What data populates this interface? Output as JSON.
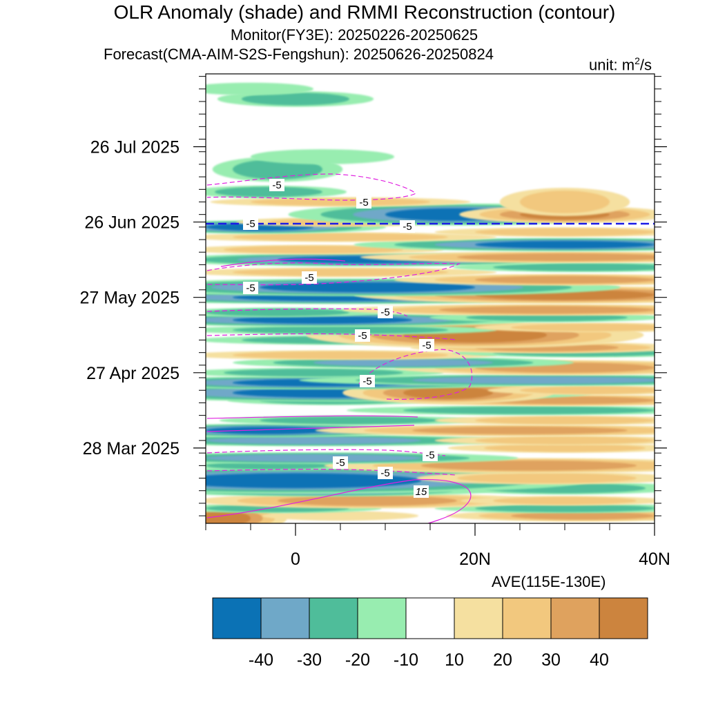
{
  "figure": {
    "title": "OLR Anomaly (shade) and RMMI Reconstruction (contour)",
    "subtitle1": "Monitor(FY3E): 20250226-20250625",
    "subtitle2": "Forecast(CMA-AIM-S2S-Fengshun): 20250626-20250824",
    "unit_prefix": "unit: m",
    "unit_sup": "2",
    "unit_suffix": "/s",
    "average_label": "AVE(115E-130E)"
  },
  "chart_data": {
    "type": "heatmap",
    "title": "OLR Anomaly (shade) and RMMI Reconstruction (contour)",
    "xlabel": "",
    "ylabel": "",
    "xlim": [
      -10,
      40
    ],
    "x_ticks": [
      0,
      20,
      40
    ],
    "x_tick_labels": [
      "0",
      "20N",
      "40N"
    ],
    "ylim": [
      "2025-02-26",
      "2025-08-24"
    ],
    "y_ticks": [
      "2025-03-28",
      "2025-04-27",
      "2025-05-27",
      "2025-06-26",
      "2025-07-26"
    ],
    "y_tick_labels": [
      "28 Mar 2025",
      "27 Apr 2025",
      "27 May 2025",
      "26 Jun 2025",
      "26 Jul 2025"
    ],
    "forecast_start": "2025-06-26",
    "colorbar": {
      "levels": [
        "-40",
        "-30",
        "-20",
        "-10",
        "10",
        "20",
        "30",
        "40"
      ],
      "colors": [
        "#0b72b5",
        "#6fa8c8",
        "#4fbd9a",
        "#98edb0",
        "#ffffff",
        "#f5e0a0",
        "#f2c87e",
        "#dfa25e",
        "#cc843e"
      ]
    },
    "contour_label_values": [
      "-5",
      "-5",
      "-5",
      "-5",
      "-5",
      "-5",
      "-5",
      "-5",
      "-5",
      "-5",
      "-5",
      "-5",
      "-5",
      "15"
    ],
    "bands": [
      {
        "date": "2025-02-28",
        "lat": -8,
        "w": 3,
        "days": 6,
        "value": 40
      },
      {
        "date": "2025-03-01",
        "lat": 5,
        "w": 6,
        "days": 3,
        "value": 15
      },
      {
        "date": "2025-03-01",
        "lat": 32,
        "w": 8,
        "days": 3,
        "value": 30
      },
      {
        "date": "2025-03-04",
        "lat": -2,
        "w": 8,
        "days": 3,
        "value": -20
      },
      {
        "date": "2025-03-04",
        "lat": 30,
        "w": 10,
        "days": 3,
        "value": -20
      },
      {
        "date": "2025-03-07",
        "lat": 8,
        "w": 10,
        "days": 4,
        "value": 30
      },
      {
        "date": "2025-03-07",
        "lat": 30,
        "w": 8,
        "days": 3,
        "value": 20
      },
      {
        "date": "2025-03-11",
        "lat": 3,
        "w": 10,
        "days": 3,
        "value": -30
      },
      {
        "date": "2025-03-12",
        "lat": 30,
        "w": 9,
        "days": 4,
        "value": -20
      },
      {
        "date": "2025-03-15",
        "lat": 0,
        "w": 14,
        "days": 6,
        "value": -40
      },
      {
        "date": "2025-03-16",
        "lat": 28,
        "w": 10,
        "days": 4,
        "value": 20
      },
      {
        "date": "2025-03-21",
        "lat": -3,
        "w": 7,
        "days": 3,
        "value": -20
      },
      {
        "date": "2025-03-21",
        "lat": 26,
        "w": 12,
        "days": 4,
        "value": 30
      },
      {
        "date": "2025-03-24",
        "lat": 2,
        "w": 12,
        "days": 3,
        "value": -30
      },
      {
        "date": "2025-03-28",
        "lat": 30,
        "w": 9,
        "days": 3,
        "value": 20
      },
      {
        "date": "2025-03-31",
        "lat": 2,
        "w": 12,
        "days": 3,
        "value": -30
      },
      {
        "date": "2025-03-31",
        "lat": 30,
        "w": 10,
        "days": 3,
        "value": 20
      },
      {
        "date": "2025-04-04",
        "lat": -3,
        "w": 7,
        "days": 3,
        "value": -40
      },
      {
        "date": "2025-04-04",
        "lat": 25,
        "w": 12,
        "days": 3,
        "value": 30
      },
      {
        "date": "2025-04-08",
        "lat": 6,
        "w": 10,
        "days": 3,
        "value": -20
      },
      {
        "date": "2025-04-08",
        "lat": 30,
        "w": 10,
        "days": 3,
        "value": 20
      },
      {
        "date": "2025-04-12",
        "lat": 26,
        "w": 14,
        "days": 3,
        "value": -20
      },
      {
        "date": "2025-04-16",
        "lat": 4,
        "w": 8,
        "days": 3,
        "value": -20
      },
      {
        "date": "2025-04-16",
        "lat": 30,
        "w": 10,
        "days": 3,
        "value": 30
      },
      {
        "date": "2025-04-19",
        "lat": 5,
        "w": 12,
        "days": 4,
        "value": -40
      },
      {
        "date": "2025-04-19",
        "lat": 17,
        "w": 5,
        "days": 5,
        "value": 40
      },
      {
        "date": "2025-04-20",
        "lat": 33,
        "w": 8,
        "days": 3,
        "value": 20
      },
      {
        "date": "2025-04-23",
        "lat": 3,
        "w": 10,
        "days": 3,
        "value": -40
      },
      {
        "date": "2025-04-24",
        "lat": 27,
        "w": 14,
        "days": 3,
        "value": -30
      },
      {
        "date": "2025-04-27",
        "lat": 2,
        "w": 10,
        "days": 3,
        "value": -20
      },
      {
        "date": "2025-04-29",
        "lat": 30,
        "w": 10,
        "days": 4,
        "value": 30
      },
      {
        "date": "2025-05-01",
        "lat": 12,
        "w": 10,
        "days": 3,
        "value": -30
      },
      {
        "date": "2025-05-04",
        "lat": 5,
        "w": 12,
        "days": 3,
        "value": 20
      },
      {
        "date": "2025-05-05",
        "lat": 32,
        "w": 10,
        "days": 3,
        "value": -20
      },
      {
        "date": "2025-05-07",
        "lat": 28,
        "w": 8,
        "days": 3,
        "value": 30
      },
      {
        "date": "2025-05-10",
        "lat": 5,
        "w": 11,
        "days": 3,
        "value": -20
      },
      {
        "date": "2025-05-12",
        "lat": 20,
        "w": 8,
        "days": 6,
        "value": 40
      },
      {
        "date": "2025-05-14",
        "lat": 5,
        "w": 12,
        "days": 3,
        "value": -20
      },
      {
        "date": "2025-05-15",
        "lat": 33,
        "w": 9,
        "days": 3,
        "value": 20
      },
      {
        "date": "2025-05-18",
        "lat": 3,
        "w": 10,
        "days": 3,
        "value": -40
      },
      {
        "date": "2025-05-19",
        "lat": 28,
        "w": 9,
        "days": 3,
        "value": -20
      },
      {
        "date": "2025-05-21",
        "lat": -2,
        "w": 8,
        "days": 3,
        "value": -20
      },
      {
        "date": "2025-05-22",
        "lat": 28,
        "w": 12,
        "days": 3,
        "value": 30
      },
      {
        "date": "2025-05-27",
        "lat": 5,
        "w": 12,
        "days": 3,
        "value": -40
      },
      {
        "date": "2025-05-28",
        "lat": 30,
        "w": 10,
        "days": 4,
        "value": 40
      },
      {
        "date": "2025-05-31",
        "lat": 8,
        "w": 12,
        "days": 4,
        "value": -40
      },
      {
        "date": "2025-06-03",
        "lat": 30,
        "w": 10,
        "days": 3,
        "value": 30
      },
      {
        "date": "2025-06-06",
        "lat": 5,
        "w": 12,
        "days": 3,
        "value": 20
      },
      {
        "date": "2025-06-08",
        "lat": 32,
        "w": 10,
        "days": 3,
        "value": -20
      },
      {
        "date": "2025-06-11",
        "lat": 8,
        "w": 10,
        "days": 3,
        "value": -40
      },
      {
        "date": "2025-06-12",
        "lat": 30,
        "w": 12,
        "days": 3,
        "value": 30
      },
      {
        "date": "2025-06-15",
        "lat": 2,
        "w": 10,
        "days": 3,
        "value": 20
      },
      {
        "date": "2025-06-17",
        "lat": 30,
        "w": 10,
        "days": 3,
        "value": -40
      },
      {
        "date": "2025-06-20",
        "lat": 5,
        "w": 12,
        "days": 3,
        "value": 20
      },
      {
        "date": "2025-06-22",
        "lat": 30,
        "w": 10,
        "days": 3,
        "value": 20
      },
      {
        "date": "2025-06-24",
        "lat": -4,
        "w": 6,
        "days": 3,
        "value": -40
      },
      {
        "date": "2025-06-26",
        "lat": 5,
        "w": 8,
        "days": 3,
        "value": 20
      },
      {
        "date": "2025-06-29",
        "lat": 18,
        "w": 8,
        "days": 5,
        "value": -40
      },
      {
        "date": "2025-06-29",
        "lat": 30,
        "w": 5,
        "days": 4,
        "value": 40
      },
      {
        "date": "2025-07-04",
        "lat": 5,
        "w": 10,
        "days": 3,
        "value": 20
      },
      {
        "date": "2025-07-04",
        "lat": 30,
        "w": 5,
        "days": 9,
        "value": 20
      },
      {
        "date": "2025-07-08",
        "lat": -3,
        "w": 6,
        "days": 4,
        "value": -20
      },
      {
        "date": "2025-07-17",
        "lat": -2,
        "w": 5,
        "days": 8,
        "value": -20
      },
      {
        "date": "2025-07-22",
        "lat": 3,
        "w": 8,
        "days": 6,
        "value": -10
      },
      {
        "date": "2025-08-14",
        "lat": 0,
        "w": 6,
        "days": 5,
        "value": -20
      },
      {
        "date": "2025-08-18",
        "lat": -5,
        "w": 7,
        "days": 5,
        "value": -10
      }
    ]
  }
}
